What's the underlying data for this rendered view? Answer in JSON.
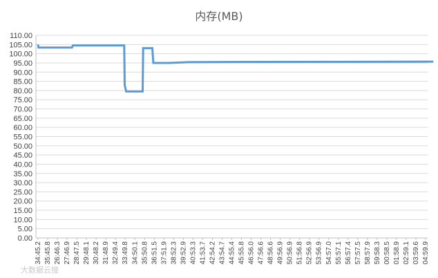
{
  "chart_data": {
    "type": "line",
    "title": "内存(MB)",
    "xlabel": "",
    "ylabel": "",
    "ylim": [
      0,
      110
    ],
    "ytick_step": 5,
    "ytick_decimals": 2,
    "grid": true,
    "legend": "none",
    "line_color": "#5b9bd5",
    "x_ticks": [
      "34:45.2",
      "35:45.8",
      "26:46.3",
      "27:46.9",
      "28:47.5",
      "29:48.1",
      "30:48.2",
      "31:48.9",
      "32:49.4",
      "33:49.8",
      "34:50.1",
      "35:50.8",
      "36:51.5",
      "37:51.9",
      "38:52.3",
      "39:52.9",
      "40:53.3",
      "41:53.7",
      "42:54.2",
      "43:54.7",
      "44:55.4",
      "45:55.8",
      "46:56.0",
      "47:56.6",
      "48:56.6",
      "49:56.9",
      "50:56.9",
      "51:56.8",
      "52:56.9",
      "53:56.9",
      "54:57.0",
      "55:57.1",
      "56:57.4",
      "57:57.5",
      "58:57.9",
      "59:58.3",
      "00:58.5",
      "01:58.9",
      "02:59.1",
      "03:59.6",
      "04:59.9"
    ],
    "series": [
      {
        "x": [
          0,
          0.05,
          3.5,
          3.6,
          8.9,
          8.95,
          9.1,
          10.8,
          10.85,
          11.8,
          11.9,
          13.5,
          14.7,
          15.5,
          19.5,
          30.3,
          40.5,
          40.8
        ],
        "values": [
          105,
          103.3,
          103.3,
          104.5,
          104.5,
          83,
          79.5,
          79.5,
          103,
          103,
          95,
          95,
          95.2,
          95.4,
          95.5,
          95.6,
          95.7,
          95.7
        ]
      }
    ]
  },
  "watermark": "大数据云搜"
}
